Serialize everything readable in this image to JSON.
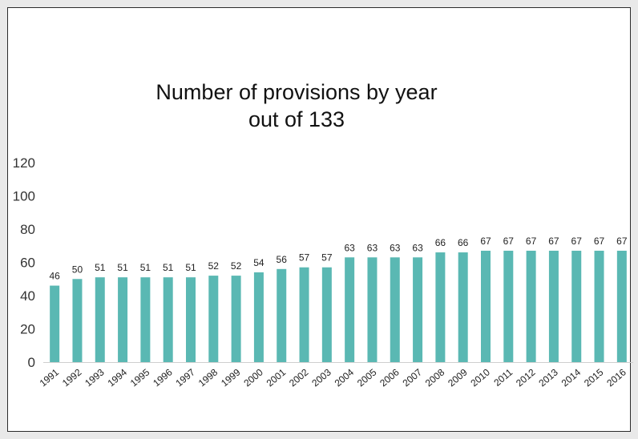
{
  "chart_data": {
    "type": "bar",
    "title": "Number of provisions by year",
    "subtitle": "out of 133",
    "xlabel": "",
    "ylabel": "",
    "ylim": [
      0,
      120
    ],
    "yticks": [
      0,
      20,
      40,
      60,
      80,
      100,
      120
    ],
    "grid": false,
    "legend": "none",
    "bar_color": "#5ab8b3",
    "categories": [
      "1991",
      "1992",
      "1993",
      "1994",
      "1995",
      "1996",
      "1997",
      "1998",
      "1999",
      "2000",
      "2001",
      "2002",
      "2003",
      "2004",
      "2005",
      "2006",
      "2007",
      "2008",
      "2009",
      "2010",
      "2011",
      "2012",
      "2013",
      "2014",
      "2015",
      "2016"
    ],
    "values": [
      46,
      50,
      51,
      51,
      51,
      51,
      51,
      52,
      52,
      54,
      56,
      57,
      57,
      63,
      63,
      63,
      63,
      66,
      66,
      67,
      67,
      67,
      67,
      67,
      67,
      67
    ]
  }
}
